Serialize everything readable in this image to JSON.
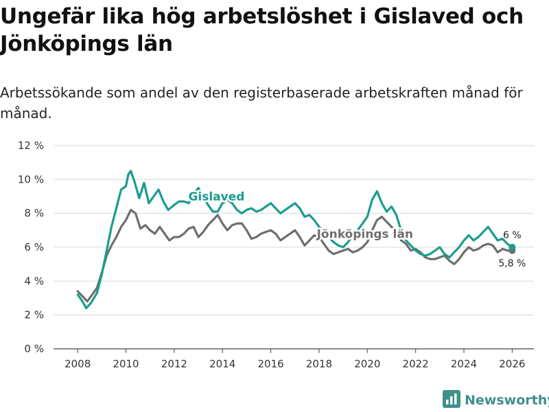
{
  "title": "Ungefär lika hög arbetslöshet i Gislaved och Jönköpings län",
  "subtitle": "Arbetssökande som andel av den registerbaserade arbetskraften månad för månad.",
  "brand": {
    "name": "Newsworthy",
    "icon": "bar-chart-logo-icon",
    "color": "#3f8f8a"
  },
  "chart_data": {
    "type": "line",
    "title": "Ungefär lika hög arbetslöshet i Gislaved och Jönköpings län",
    "xlabel": "",
    "ylabel": "",
    "xlim": [
      2007,
      2026.9
    ],
    "ylim": [
      0,
      12
    ],
    "grid": true,
    "y_ticks": [
      {
        "value": 0,
        "label": "0 %"
      },
      {
        "value": 2,
        "label": "2 %"
      },
      {
        "value": 4,
        "label": "4 %"
      },
      {
        "value": 6,
        "label": "6 %"
      },
      {
        "value": 8,
        "label": "8 %"
      },
      {
        "value": 10,
        "label": "10 %"
      },
      {
        "value": 12,
        "label": "12 %"
      }
    ],
    "x_ticks": [
      {
        "value": 2008,
        "label": "2008"
      },
      {
        "value": 2010,
        "label": "2010"
      },
      {
        "value": 2012,
        "label": "2012"
      },
      {
        "value": 2014,
        "label": "2014"
      },
      {
        "value": 2016,
        "label": "2016"
      },
      {
        "value": 2018,
        "label": "2018"
      },
      {
        "value": 2020,
        "label": "2020"
      },
      {
        "value": 2022,
        "label": "2022"
      },
      {
        "value": 2024,
        "label": "2024"
      },
      {
        "value": 2026,
        "label": "2026"
      }
    ],
    "series": [
      {
        "name": "Jönköpings län",
        "label": "Jönköpings län",
        "color": "#6e6e6e",
        "end_label": "5,8 %",
        "points": [
          [
            2008.0,
            3.4
          ],
          [
            2008.2,
            3.1
          ],
          [
            2008.4,
            2.8
          ],
          [
            2008.6,
            3.2
          ],
          [
            2008.8,
            3.6
          ],
          [
            2009.0,
            4.5
          ],
          [
            2009.2,
            5.5
          ],
          [
            2009.4,
            6.1
          ],
          [
            2009.6,
            6.6
          ],
          [
            2009.8,
            7.2
          ],
          [
            2010.0,
            7.6
          ],
          [
            2010.2,
            8.2
          ],
          [
            2010.4,
            8.0
          ],
          [
            2010.6,
            7.1
          ],
          [
            2010.8,
            7.3
          ],
          [
            2011.0,
            7.0
          ],
          [
            2011.2,
            6.8
          ],
          [
            2011.4,
            7.2
          ],
          [
            2011.6,
            6.8
          ],
          [
            2011.8,
            6.4
          ],
          [
            2012.0,
            6.6
          ],
          [
            2012.2,
            6.6
          ],
          [
            2012.4,
            6.8
          ],
          [
            2012.6,
            7.1
          ],
          [
            2012.8,
            7.2
          ],
          [
            2013.0,
            6.6
          ],
          [
            2013.2,
            6.9
          ],
          [
            2013.4,
            7.3
          ],
          [
            2013.6,
            7.6
          ],
          [
            2013.8,
            7.9
          ],
          [
            2014.0,
            7.4
          ],
          [
            2014.2,
            7.0
          ],
          [
            2014.4,
            7.3
          ],
          [
            2014.6,
            7.4
          ],
          [
            2014.8,
            7.4
          ],
          [
            2015.0,
            7.0
          ],
          [
            2015.2,
            6.5
          ],
          [
            2015.4,
            6.6
          ],
          [
            2015.6,
            6.8
          ],
          [
            2015.8,
            6.9
          ],
          [
            2016.0,
            7.0
          ],
          [
            2016.2,
            6.8
          ],
          [
            2016.4,
            6.4
          ],
          [
            2016.6,
            6.6
          ],
          [
            2016.8,
            6.8
          ],
          [
            2017.0,
            7.0
          ],
          [
            2017.2,
            6.6
          ],
          [
            2017.4,
            6.1
          ],
          [
            2017.6,
            6.4
          ],
          [
            2017.8,
            6.7
          ],
          [
            2018.0,
            6.6
          ],
          [
            2018.2,
            6.2
          ],
          [
            2018.4,
            5.8
          ],
          [
            2018.6,
            5.6
          ],
          [
            2018.8,
            5.7
          ],
          [
            2019.0,
            5.8
          ],
          [
            2019.2,
            5.9
          ],
          [
            2019.4,
            5.7
          ],
          [
            2019.6,
            5.8
          ],
          [
            2019.8,
            6.0
          ],
          [
            2020.0,
            6.3
          ],
          [
            2020.2,
            7.0
          ],
          [
            2020.4,
            7.6
          ],
          [
            2020.6,
            7.8
          ],
          [
            2020.8,
            7.5
          ],
          [
            2021.0,
            7.2
          ],
          [
            2021.2,
            7.0
          ],
          [
            2021.4,
            6.4
          ],
          [
            2021.6,
            6.2
          ],
          [
            2021.8,
            5.8
          ],
          [
            2022.0,
            5.9
          ],
          [
            2022.2,
            5.7
          ],
          [
            2022.4,
            5.4
          ],
          [
            2022.6,
            5.3
          ],
          [
            2022.8,
            5.3
          ],
          [
            2023.0,
            5.4
          ],
          [
            2023.2,
            5.5
          ],
          [
            2023.4,
            5.2
          ],
          [
            2023.6,
            5.0
          ],
          [
            2023.8,
            5.3
          ],
          [
            2024.0,
            5.7
          ],
          [
            2024.2,
            6.0
          ],
          [
            2024.4,
            5.8
          ],
          [
            2024.6,
            5.9
          ],
          [
            2024.8,
            6.1
          ],
          [
            2025.0,
            6.2
          ],
          [
            2025.2,
            6.1
          ],
          [
            2025.4,
            5.7
          ],
          [
            2025.6,
            5.9
          ],
          [
            2025.8,
            5.8
          ],
          [
            2026.0,
            5.8
          ]
        ]
      },
      {
        "name": "Gislaved",
        "label": "Gislaved",
        "color": "#1a9c8e",
        "end_label": "6 %",
        "points": [
          [
            2008.0,
            3.2
          ],
          [
            2008.2,
            2.8
          ],
          [
            2008.35,
            2.4
          ],
          [
            2008.55,
            2.7
          ],
          [
            2008.8,
            3.3
          ],
          [
            2009.0,
            4.4
          ],
          [
            2009.2,
            5.8
          ],
          [
            2009.4,
            7.2
          ],
          [
            2009.6,
            8.3
          ],
          [
            2009.8,
            9.4
          ],
          [
            2010.0,
            9.6
          ],
          [
            2010.1,
            10.3
          ],
          [
            2010.2,
            10.5
          ],
          [
            2010.35,
            9.9
          ],
          [
            2010.55,
            8.9
          ],
          [
            2010.75,
            9.8
          ],
          [
            2010.95,
            8.6
          ],
          [
            2011.15,
            9.0
          ],
          [
            2011.35,
            9.4
          ],
          [
            2011.55,
            8.7
          ],
          [
            2011.75,
            8.2
          ],
          [
            2012.0,
            8.5
          ],
          [
            2012.2,
            8.7
          ],
          [
            2012.4,
            8.7
          ],
          [
            2012.6,
            8.6
          ],
          [
            2012.8,
            9.1
          ],
          [
            2013.0,
            9.5
          ],
          [
            2013.2,
            9.0
          ],
          [
            2013.4,
            8.5
          ],
          [
            2013.6,
            8.1
          ],
          [
            2013.8,
            8.1
          ],
          [
            2014.0,
            8.6
          ],
          [
            2014.2,
            8.8
          ],
          [
            2014.4,
            8.6
          ],
          [
            2014.6,
            8.2
          ],
          [
            2014.8,
            8.0
          ],
          [
            2015.0,
            8.2
          ],
          [
            2015.2,
            8.3
          ],
          [
            2015.4,
            8.1
          ],
          [
            2015.6,
            8.2
          ],
          [
            2015.8,
            8.4
          ],
          [
            2016.0,
            8.6
          ],
          [
            2016.2,
            8.3
          ],
          [
            2016.4,
            8.0
          ],
          [
            2016.6,
            8.2
          ],
          [
            2016.8,
            8.4
          ],
          [
            2017.0,
            8.6
          ],
          [
            2017.2,
            8.3
          ],
          [
            2017.4,
            7.8
          ],
          [
            2017.6,
            7.9
          ],
          [
            2017.8,
            7.6
          ],
          [
            2018.0,
            7.2
          ],
          [
            2018.2,
            6.9
          ],
          [
            2018.4,
            6.6
          ],
          [
            2018.6,
            6.3
          ],
          [
            2018.8,
            6.1
          ],
          [
            2019.0,
            6.0
          ],
          [
            2019.2,
            6.3
          ],
          [
            2019.4,
            6.7
          ],
          [
            2019.6,
            7.0
          ],
          [
            2019.8,
            7.4
          ],
          [
            2020.0,
            7.8
          ],
          [
            2020.2,
            8.8
          ],
          [
            2020.4,
            9.3
          ],
          [
            2020.6,
            8.6
          ],
          [
            2020.8,
            8.1
          ],
          [
            2021.0,
            8.4
          ],
          [
            2021.2,
            7.9
          ],
          [
            2021.4,
            7.0
          ],
          [
            2021.6,
            6.4
          ],
          [
            2021.8,
            6.1
          ],
          [
            2022.0,
            5.8
          ],
          [
            2022.2,
            5.6
          ],
          [
            2022.4,
            5.5
          ],
          [
            2022.6,
            5.6
          ],
          [
            2022.8,
            5.8
          ],
          [
            2023.0,
            6.0
          ],
          [
            2023.2,
            5.6
          ],
          [
            2023.4,
            5.4
          ],
          [
            2023.6,
            5.7
          ],
          [
            2023.8,
            6.0
          ],
          [
            2024.0,
            6.4
          ],
          [
            2024.2,
            6.7
          ],
          [
            2024.4,
            6.4
          ],
          [
            2024.6,
            6.6
          ],
          [
            2024.8,
            6.9
          ],
          [
            2025.0,
            7.2
          ],
          [
            2025.2,
            6.8
          ],
          [
            2025.4,
            6.4
          ],
          [
            2025.6,
            6.5
          ],
          [
            2025.8,
            6.2
          ],
          [
            2026.0,
            6.0
          ]
        ]
      }
    ]
  }
}
